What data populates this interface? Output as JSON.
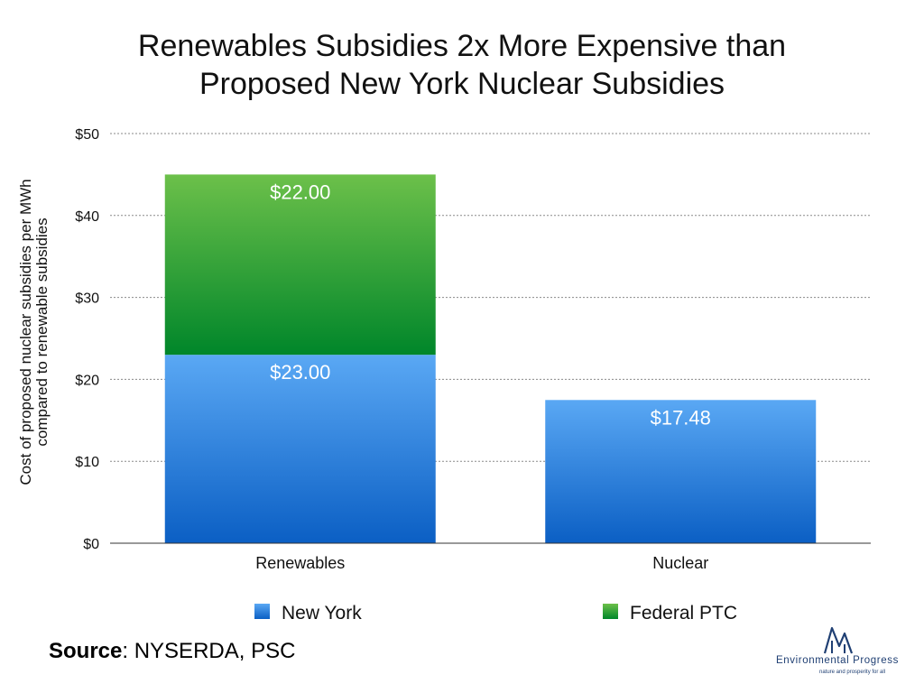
{
  "title_lines": [
    "Renewables Subsidies 2x More Expensive than",
    "Proposed New York Nuclear Subsidies"
  ],
  "source": {
    "label": "Source",
    "text": ": NYSERDA, PSC"
  },
  "logo": {
    "name": "Environmental Progress",
    "tagline": "nature and prosperity for all",
    "color": "#1f3f73"
  },
  "chart_data": {
    "type": "bar",
    "stacked": true,
    "categories": [
      "Renewables",
      "Nuclear"
    ],
    "series": [
      {
        "name": "New York",
        "values": [
          23.0,
          17.48
        ],
        "labels": [
          "$23.00",
          "$17.48"
        ],
        "color_top": "#5aa8f4",
        "color_bottom": "#0b5fc4"
      },
      {
        "name": "Federal PTC",
        "values": [
          22.0,
          0
        ],
        "labels": [
          "$22.00",
          ""
        ],
        "color_top": "#6cc04a",
        "color_bottom": "#00862a"
      }
    ],
    "ylabel_lines": [
      "Cost of proposed nuclear subsidies per MWh",
      "compared to renewable subsidies"
    ],
    "ylim": [
      0,
      50
    ],
    "yticks": [
      0,
      10,
      20,
      30,
      40,
      50
    ],
    "ytick_labels": [
      "$0",
      "$10",
      "$20",
      "$30",
      "$40",
      "$50"
    ],
    "grid": true,
    "legend_position": "bottom"
  }
}
